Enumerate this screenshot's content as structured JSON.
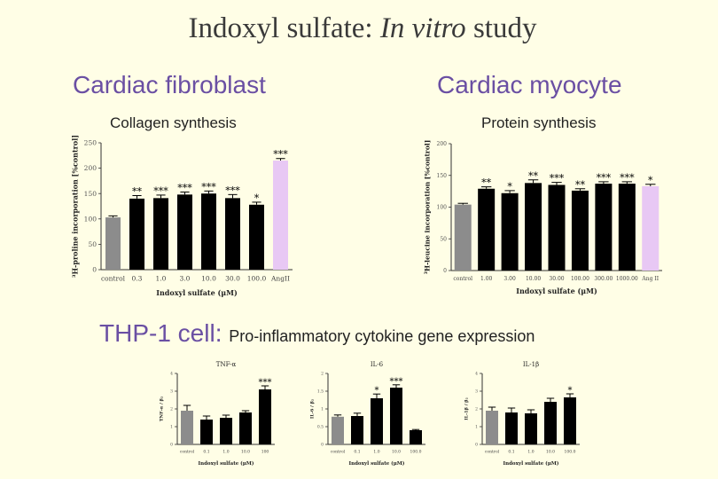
{
  "title": {
    "main": "Indoxyl sulfate: ",
    "italic": "In vitro",
    "tail": " study"
  },
  "headings": {
    "left": "Cardiac fibroblast",
    "right": "Cardiac myocyte"
  },
  "subtitles": {
    "left": "Collagen synthesis",
    "right": "Protein synthesis"
  },
  "thp": {
    "label": "THP-1 cell: ",
    "desc": "Pro-inflammatory cytokine gene expression"
  },
  "colors": {
    "control": "#8c8c8c",
    "treatment": "#000000",
    "angii": "#e8c8f4",
    "heading": "#6a4fa3",
    "background": "#fffee6"
  },
  "chart_data": [
    {
      "id": "fibroblast",
      "type": "bar",
      "title": "",
      "ylabel": "³H-proline incorporation [%control]",
      "xlabel": "Indoxyl sulfate (μM)",
      "ylim": [
        0,
        250
      ],
      "yticks": [
        0,
        50,
        100,
        150,
        200,
        250
      ],
      "categories": [
        "control",
        "0.3",
        "1.0",
        "3.0",
        "10.0",
        "30.0",
        "100.0",
        "AngII"
      ],
      "values": [
        103,
        140,
        141,
        148,
        150,
        141,
        128,
        215
      ],
      "errors": [
        3,
        6,
        6,
        5,
        5,
        7,
        5,
        4
      ],
      "significance": [
        "",
        "**",
        "***",
        "***",
        "***",
        "***",
        "*",
        "***"
      ],
      "colors": [
        "control",
        "treatment",
        "treatment",
        "treatment",
        "treatment",
        "treatment",
        "treatment",
        "angii"
      ]
    },
    {
      "id": "myocyte",
      "type": "bar",
      "title": "",
      "ylabel": "³H-leucine incorporation [%control]",
      "xlabel": "Indoxyl sulfate (μM)",
      "ylim": [
        0,
        200
      ],
      "yticks": [
        0,
        50,
        100,
        150,
        200
      ],
      "categories": [
        "control",
        "1.00",
        "3.00",
        "10.00",
        "30.00",
        "100.00",
        "300.00",
        "1000.00",
        "Ang II"
      ],
      "values": [
        104,
        129,
        122,
        138,
        135,
        126,
        137,
        137,
        133
      ],
      "errors": [
        2,
        3,
        4,
        5,
        4,
        3,
        3,
        3,
        3
      ],
      "significance": [
        "",
        "**",
        "*",
        "**",
        "***",
        "**",
        "***",
        "***",
        "*"
      ],
      "colors": [
        "control",
        "treatment",
        "treatment",
        "treatment",
        "treatment",
        "treatment",
        "treatment",
        "treatment",
        "angii"
      ]
    },
    {
      "id": "tnf",
      "type": "bar",
      "title": "TNF-α",
      "ylabel": "TNF-α / β₂",
      "xlabel": "Indoxyl sulfate (μM)",
      "ylim": [
        0,
        4
      ],
      "yticks": [
        0,
        1,
        2,
        3,
        4
      ],
      "categories": [
        "control",
        "0.1",
        "1.0",
        "10.0",
        "100"
      ],
      "values": [
        1.9,
        1.4,
        1.5,
        1.8,
        3.1
      ],
      "errors": [
        0.3,
        0.2,
        0.15,
        0.1,
        0.2
      ],
      "significance": [
        "",
        "",
        "",
        "",
        "***"
      ],
      "colors": [
        "control",
        "treatment",
        "treatment",
        "treatment",
        "treatment"
      ]
    },
    {
      "id": "il6",
      "type": "bar",
      "title": "IL-6",
      "ylabel": "IL-6 / β₂",
      "xlabel": "Indoxyl sulfate (μM)",
      "ylim": [
        0,
        2
      ],
      "yticks": [
        0,
        0.5,
        1.0,
        1.5,
        2.0
      ],
      "categories": [
        "control",
        "0.1",
        "1.0",
        "10.0",
        "100.0"
      ],
      "values": [
        0.78,
        0.8,
        1.3,
        1.6,
        0.4
      ],
      "errors": [
        0.05,
        0.08,
        0.12,
        0.08,
        0.02
      ],
      "significance": [
        "",
        "",
        "*",
        "***",
        ""
      ],
      "colors": [
        "control",
        "treatment",
        "treatment",
        "treatment",
        "treatment"
      ]
    },
    {
      "id": "il1b",
      "type": "bar",
      "title": "IL-1β",
      "ylabel": "IL-1β / β₂",
      "xlabel": "Indoxyl sulfate (μM)",
      "ylim": [
        0,
        4
      ],
      "yticks": [
        0,
        1,
        2,
        3,
        4
      ],
      "categories": [
        "control",
        "0.1",
        "1.0",
        "10.0",
        "100.0"
      ],
      "values": [
        1.9,
        1.8,
        1.75,
        2.4,
        2.65
      ],
      "errors": [
        0.2,
        0.25,
        0.2,
        0.2,
        0.2
      ],
      "significance": [
        "",
        "",
        "",
        "",
        "*"
      ],
      "colors": [
        "control",
        "treatment",
        "treatment",
        "treatment",
        "treatment"
      ]
    }
  ]
}
